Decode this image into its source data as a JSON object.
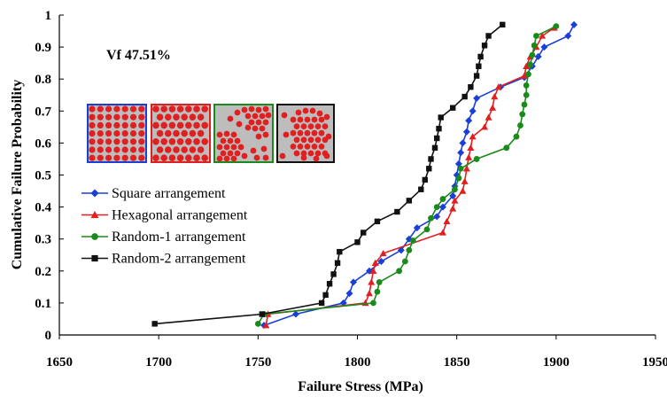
{
  "chart_data": {
    "type": "line",
    "title": "",
    "xlabel": "Failure Stress (MPa)",
    "ylabel": "Cumulative Failure Probability",
    "xlim": [
      1650,
      1950
    ],
    "ylim": [
      0,
      1
    ],
    "x_ticks": [
      "1650",
      "1700",
      "1750",
      "1800",
      "1850",
      "1900",
      "1950"
    ],
    "y_ticks": [
      "0",
      "0.1",
      "0.2",
      "0.3",
      "0.4",
      "0.5",
      "0.6",
      "0.7",
      "0.8",
      "0.9",
      "1"
    ],
    "annotation": "Vf 47.51%",
    "grid": false,
    "legend_position": "middle-left",
    "inset_icons": [
      {
        "name": "square-arrangement-icon",
        "border": "#1a3fd6"
      },
      {
        "name": "hexagonal-arrangement-icon",
        "border": "#e02020"
      },
      {
        "name": "random-1-arrangement-icon",
        "border": "#1a8a1a"
      },
      {
        "name": "random-2-arrangement-icon",
        "border": "#111111"
      }
    ],
    "series": [
      {
        "name": "Square arrangement",
        "color": "#1a3fd6",
        "marker": "diamond",
        "points": [
          [
            1753,
            0.03
          ],
          [
            1769,
            0.065
          ],
          [
            1793,
            0.1
          ],
          [
            1796,
            0.13
          ],
          [
            1798,
            0.165
          ],
          [
            1806,
            0.2
          ],
          [
            1812,
            0.23
          ],
          [
            1822,
            0.265
          ],
          [
            1826,
            0.3
          ],
          [
            1830,
            0.335
          ],
          [
            1840,
            0.37
          ],
          [
            1843,
            0.4
          ],
          [
            1848,
            0.435
          ],
          [
            1849,
            0.465
          ],
          [
            1850,
            0.5
          ],
          [
            1851,
            0.535
          ],
          [
            1852,
            0.57
          ],
          [
            1853,
            0.6
          ],
          [
            1855,
            0.635
          ],
          [
            1856,
            0.67
          ],
          [
            1858,
            0.7
          ],
          [
            1860,
            0.74
          ],
          [
            1872,
            0.775
          ],
          [
            1884,
            0.805
          ],
          [
            1888,
            0.84
          ],
          [
            1891,
            0.87
          ],
          [
            1894,
            0.9
          ],
          [
            1906,
            0.935
          ],
          [
            1909,
            0.97
          ]
        ]
      },
      {
        "name": "Hexagonal arrangement",
        "color": "#e02020",
        "marker": "triangle",
        "points": [
          [
            1754,
            0.03
          ],
          [
            1755,
            0.065
          ],
          [
            1804,
            0.1
          ],
          [
            1806,
            0.13
          ],
          [
            1807,
            0.165
          ],
          [
            1808,
            0.2
          ],
          [
            1809,
            0.225
          ],
          [
            1813,
            0.255
          ],
          [
            1843,
            0.32
          ],
          [
            1845,
            0.355
          ],
          [
            1848,
            0.395
          ],
          [
            1849,
            0.42
          ],
          [
            1853,
            0.45
          ],
          [
            1854,
            0.48
          ],
          [
            1855,
            0.52
          ],
          [
            1856,
            0.555
          ],
          [
            1857,
            0.585
          ],
          [
            1858,
            0.62
          ],
          [
            1864,
            0.65
          ],
          [
            1866,
            0.68
          ],
          [
            1868,
            0.71
          ],
          [
            1869,
            0.745
          ],
          [
            1871,
            0.775
          ],
          [
            1884,
            0.81
          ],
          [
            1885,
            0.84
          ],
          [
            1887,
            0.87
          ],
          [
            1890,
            0.9
          ],
          [
            1893,
            0.935
          ],
          [
            1899,
            0.96
          ]
        ]
      },
      {
        "name": "Random-1 arrangement",
        "color": "#1a8a1a",
        "marker": "circle",
        "points": [
          [
            1750,
            0.035
          ],
          [
            1753,
            0.065
          ],
          [
            1808,
            0.1
          ],
          [
            1810,
            0.135
          ],
          [
            1811,
            0.165
          ],
          [
            1821,
            0.2
          ],
          [
            1824,
            0.23
          ],
          [
            1826,
            0.265
          ],
          [
            1828,
            0.295
          ],
          [
            1835,
            0.33
          ],
          [
            1837,
            0.365
          ],
          [
            1840,
            0.4
          ],
          [
            1843,
            0.425
          ],
          [
            1849,
            0.455
          ],
          [
            1851,
            0.49
          ],
          [
            1852,
            0.52
          ],
          [
            1860,
            0.55
          ],
          [
            1875,
            0.585
          ],
          [
            1880,
            0.62
          ],
          [
            1882,
            0.655
          ],
          [
            1883,
            0.69
          ],
          [
            1884,
            0.72
          ],
          [
            1885,
            0.75
          ],
          [
            1885,
            0.78
          ],
          [
            1886,
            0.815
          ],
          [
            1887,
            0.845
          ],
          [
            1888,
            0.875
          ],
          [
            1889,
            0.905
          ],
          [
            1890,
            0.935
          ],
          [
            1900,
            0.965
          ]
        ]
      },
      {
        "name": "Random-2 arrangement",
        "color": "#111111",
        "marker": "square",
        "points": [
          [
            1698,
            0.035
          ],
          [
            1752,
            0.065
          ],
          [
            1782,
            0.1
          ],
          [
            1784,
            0.125
          ],
          [
            1786,
            0.16
          ],
          [
            1788,
            0.19
          ],
          [
            1790,
            0.225
          ],
          [
            1791,
            0.26
          ],
          [
            1800,
            0.29
          ],
          [
            1803,
            0.32
          ],
          [
            1810,
            0.355
          ],
          [
            1820,
            0.385
          ],
          [
            1826,
            0.42
          ],
          [
            1832,
            0.455
          ],
          [
            1834,
            0.485
          ],
          [
            1836,
            0.52
          ],
          [
            1837,
            0.55
          ],
          [
            1839,
            0.585
          ],
          [
            1840,
            0.615
          ],
          [
            1841,
            0.645
          ],
          [
            1842,
            0.68
          ],
          [
            1848,
            0.71
          ],
          [
            1854,
            0.745
          ],
          [
            1857,
            0.775
          ],
          [
            1860,
            0.81
          ],
          [
            1861,
            0.84
          ],
          [
            1862,
            0.87
          ],
          [
            1864,
            0.905
          ],
          [
            1866,
            0.935
          ],
          [
            1873,
            0.97
          ]
        ]
      }
    ]
  }
}
